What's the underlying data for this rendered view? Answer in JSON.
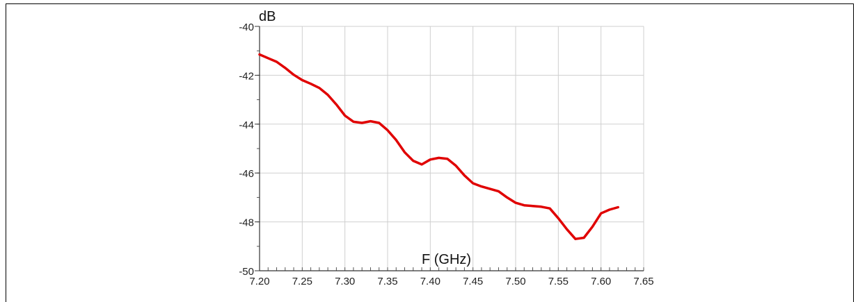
{
  "chart_data": {
    "type": "line",
    "title": "",
    "xlabel": "F (GHz)",
    "ylabel": "dB",
    "xlim": [
      7.2,
      7.65
    ],
    "ylim": [
      -50,
      -40
    ],
    "x_ticks": [
      "7.20",
      "7.25",
      "7.30",
      "7.35",
      "7.40",
      "7.45",
      "7.50",
      "7.55",
      "7.60",
      "7.65"
    ],
    "y_ticks": [
      "-40",
      "-42",
      "-44",
      "-46",
      "-48",
      "-50"
    ],
    "grid": true,
    "line_color": "#e00000",
    "series": [
      {
        "x": [
          7.2,
          7.21,
          7.22,
          7.23,
          7.24,
          7.25,
          7.26,
          7.27,
          7.28,
          7.29,
          7.3,
          7.31,
          7.32,
          7.33,
          7.34,
          7.35,
          7.36,
          7.37,
          7.38,
          7.39,
          7.4,
          7.41,
          7.42,
          7.43,
          7.44,
          7.45,
          7.46,
          7.47,
          7.48,
          7.49,
          7.5,
          7.51,
          7.52,
          7.53,
          7.54,
          7.55,
          7.56,
          7.57,
          7.58,
          7.59,
          7.6,
          7.61,
          7.62
        ],
        "values": [
          -41.15,
          -41.3,
          -41.45,
          -41.7,
          -41.98,
          -42.2,
          -42.35,
          -42.52,
          -42.8,
          -43.2,
          -43.65,
          -43.9,
          -43.95,
          -43.88,
          -43.95,
          -44.25,
          -44.65,
          -45.15,
          -45.5,
          -45.65,
          -45.45,
          -45.38,
          -45.42,
          -45.7,
          -46.1,
          -46.42,
          -46.55,
          -46.65,
          -46.75,
          -47.0,
          -47.22,
          -47.32,
          -47.35,
          -47.38,
          -47.45,
          -47.85,
          -48.3,
          -48.7,
          -48.65,
          -48.2,
          -47.65,
          -47.5,
          -47.4
        ]
      }
    ]
  }
}
